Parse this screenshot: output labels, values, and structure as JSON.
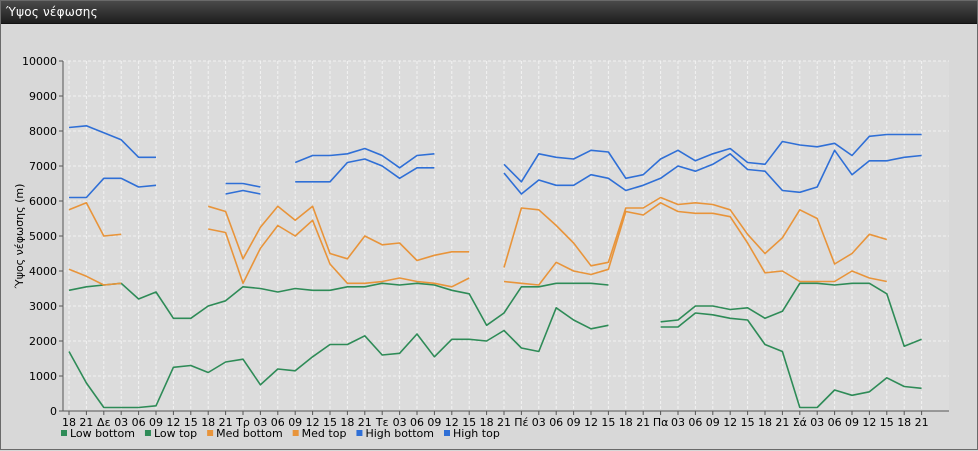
{
  "window": {
    "title": "Ύψος νέφωσης"
  },
  "chart_data": {
    "type": "line",
    "title": "",
    "ylabel": "Ύψος νέφωσης (m)",
    "xlabel": "",
    "ylim": [
      0,
      10000
    ],
    "yticks": [
      0,
      1000,
      2000,
      3000,
      4000,
      5000,
      6000,
      7000,
      8000,
      9000,
      10000
    ],
    "grid": true,
    "legend_position": "bottom-left",
    "categories": [
      "18",
      "21",
      "Δε",
      "03",
      "06",
      "09",
      "12",
      "15",
      "18",
      "21",
      "Τρ",
      "03",
      "06",
      "09",
      "12",
      "15",
      "18",
      "21",
      "Τε",
      "03",
      "06",
      "09",
      "12",
      "15",
      "18",
      "21",
      "Πέ",
      "03",
      "06",
      "09",
      "12",
      "15",
      "18",
      "21",
      "Πα",
      "03",
      "06",
      "09",
      "12",
      "15",
      "18",
      "21",
      "Σά",
      "03",
      "06",
      "09",
      "12",
      "15",
      "18",
      "21"
    ],
    "series": [
      {
        "name": "Low bottom",
        "color": "#2e8b57",
        "values": [
          1700,
          800,
          100,
          100,
          100,
          150,
          1250,
          1300,
          1100,
          1400,
          1480,
          750,
          1200,
          1150,
          1550,
          1900,
          1900,
          2150,
          1600,
          1650,
          2200,
          1550,
          2050,
          2050,
          2000,
          2300,
          1800,
          1700,
          2950,
          2600,
          2350,
          2450,
          null,
          null,
          2400,
          2400,
          2800,
          2750,
          2650,
          2600,
          1900,
          1700,
          100,
          100,
          600,
          450,
          550,
          950,
          700,
          650
        ]
      },
      {
        "name": "Low top",
        "color": "#2e8b57",
        "values": [
          3450,
          3550,
          3600,
          3650,
          3200,
          3400,
          2650,
          2650,
          3000,
          3150,
          3550,
          3500,
          3400,
          3500,
          3450,
          3450,
          3550,
          3550,
          3650,
          3600,
          3650,
          3600,
          3450,
          3350,
          2450,
          2800,
          3550,
          3550,
          3650,
          3650,
          3650,
          3600,
          null,
          null,
          2550,
          2600,
          3000,
          3000,
          2900,
          2950,
          2650,
          2850,
          3650,
          3650,
          3600,
          3650,
          3650,
          3350,
          1850,
          2050
        ]
      },
      {
        "name": "Med bottom",
        "color": "#e8943a",
        "values": [
          4050,
          3850,
          3600,
          3650,
          null,
          null,
          null,
          null,
          5200,
          5100,
          3650,
          4650,
          5300,
          5000,
          5450,
          4200,
          3650,
          3650,
          3700,
          3800,
          3700,
          3650,
          3550,
          3800,
          null,
          3700,
          3650,
          3600,
          4250,
          4000,
          3900,
          4050,
          5700,
          5600,
          5950,
          5700,
          5650,
          5650,
          5550,
          4800,
          3950,
          4000,
          3700,
          3700,
          3700,
          4000,
          3800,
          3700,
          null,
          null
        ]
      },
      {
        "name": "Med top",
        "color": "#e8943a",
        "values": [
          5750,
          5950,
          5000,
          5050,
          null,
          null,
          null,
          null,
          5850,
          5700,
          4350,
          5250,
          5850,
          5450,
          5850,
          4500,
          4350,
          5000,
          4750,
          4800,
          4300,
          4450,
          4550,
          4550,
          null,
          4100,
          5800,
          5750,
          5300,
          4800,
          4150,
          4250,
          5800,
          5800,
          6100,
          5900,
          5950,
          5900,
          5750,
          5050,
          4500,
          4950,
          5750,
          5500,
          4200,
          4500,
          5050,
          4900,
          null,
          null
        ]
      },
      {
        "name": "High bottom",
        "color": "#2f6fd6",
        "values": [
          6100,
          6100,
          6650,
          6650,
          6400,
          6450,
          null,
          null,
          null,
          6200,
          6300,
          6200,
          null,
          6550,
          6550,
          6550,
          7100,
          7200,
          7000,
          6650,
          6950,
          6950,
          null,
          null,
          null,
          6800,
          6200,
          6600,
          6450,
          6450,
          6750,
          6650,
          6300,
          6450,
          6650,
          7000,
          6850,
          7050,
          7350,
          6900,
          6850,
          6300,
          6250,
          6400,
          7450,
          6750,
          7150,
          7150,
          7250,
          7300
        ]
      },
      {
        "name": "High top",
        "color": "#2f6fd6",
        "values": [
          8100,
          8150,
          7950,
          7750,
          7250,
          7250,
          null,
          null,
          null,
          6500,
          6500,
          6400,
          null,
          7100,
          7300,
          7300,
          7350,
          7500,
          7300,
          6950,
          7300,
          7350,
          null,
          null,
          null,
          7050,
          6550,
          7350,
          7250,
          7200,
          7450,
          7400,
          6650,
          6750,
          7200,
          7450,
          7150,
          7350,
          7500,
          7100,
          7050,
          7700,
          7600,
          7550,
          7650,
          7300,
          7850,
          7900,
          7900,
          7900
        ]
      }
    ]
  }
}
